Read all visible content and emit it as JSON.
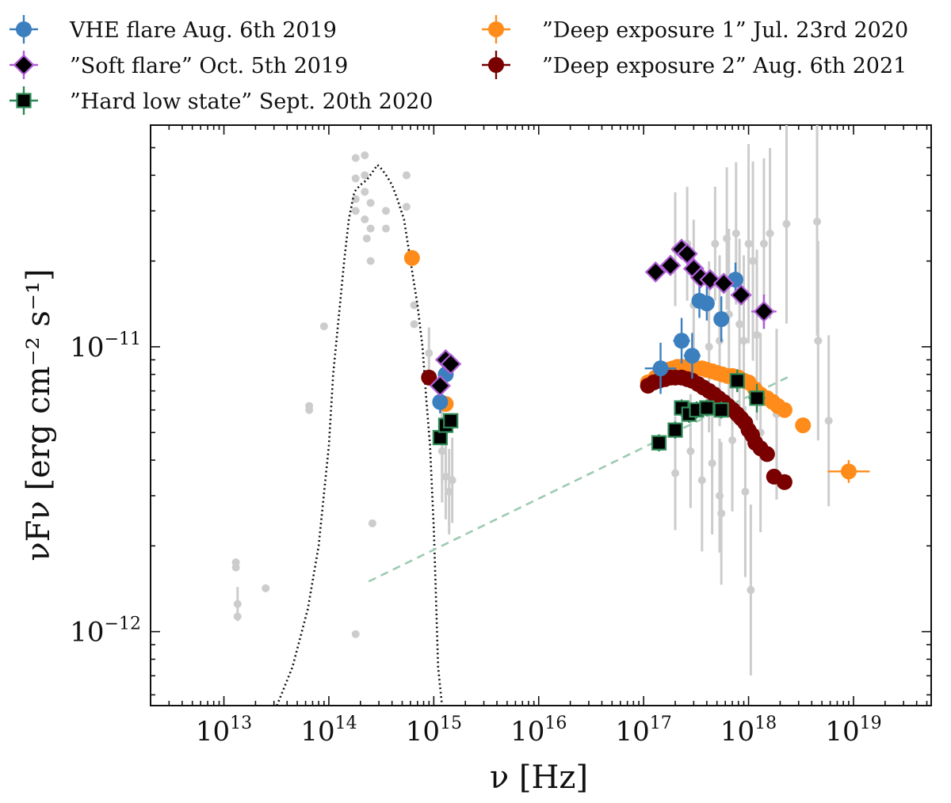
{
  "chart_data": {
    "type": "scatter",
    "xlabel": "ν [Hz]",
    "ylabel": "νFν [erg cm⁻² s⁻¹]",
    "xscale": "log",
    "yscale": "log",
    "xlim": [
      2000000000000.0,
      5.5e+19
    ],
    "ylim": [
      5.5e-13,
      6e-11
    ],
    "x_ticks": [
      {
        "value": 10000000000000.0,
        "base": "10",
        "exp": "13"
      },
      {
        "value": 100000000000000.0,
        "base": "10",
        "exp": "14"
      },
      {
        "value": 1000000000000000.0,
        "base": "10",
        "exp": "15"
      },
      {
        "value": 1e+16,
        "base": "10",
        "exp": "16"
      },
      {
        "value": 1e+17,
        "base": "10",
        "exp": "17"
      },
      {
        "value": 1e+18,
        "base": "10",
        "exp": "18"
      },
      {
        "value": 1e+19,
        "base": "10",
        "exp": "19"
      }
    ],
    "y_ticks": [
      {
        "value": 1e-11,
        "base": "10",
        "exp": "−11"
      },
      {
        "value": 1e-12,
        "base": "10",
        "exp": "−12"
      }
    ],
    "legend_position": "top, outside, two columns",
    "colors": {
      "vhe": "#3b7fbf",
      "soft_edge": "#b05ed8",
      "hard_edge": "#2e8b57",
      "deep1": "#ff8c1a",
      "deep2": "#7a0000",
      "archival": "#cccccc",
      "template": "#111111",
      "powerlaw": "#9ccbb0"
    },
    "legend": [
      {
        "label": "VHE flare Aug. 6th 2019",
        "marker": "circle",
        "color": "#3b7fbf"
      },
      {
        "label": "”Soft flare” Oct. 5th 2019",
        "marker": "diamond",
        "color": "#b05ed8"
      },
      {
        "label": "”Hard low state” Sept. 20th 2020",
        "marker": "square",
        "color": "#2e8b57"
      },
      {
        "label": "”Deep exposure 1” Jul. 23rd 2020",
        "marker": "circle",
        "color": "#ff8c1a"
      },
      {
        "label": "”Deep exposure 2” Aug. 6th 2021",
        "marker": "circle",
        "color": "#7a0000"
      }
    ],
    "series": [
      {
        "name": "VHE flare Aug. 6th 2019",
        "marker": "circle",
        "points": [
          [
            1150000000000000.0,
            6.4e-12
          ],
          [
            1300000000000000.0,
            8e-12
          ],
          [
            1.45e+17,
            8.4e-12
          ],
          [
            2.3e+17,
            1.05e-11
          ],
          [
            2.9e+17,
            9.3e-12
          ],
          [
            3.4e+17,
            1.45e-11
          ],
          [
            4e+17,
            1.42e-11
          ],
          [
            5.5e+17,
            1.25e-11
          ],
          [
            7.5e+17,
            1.72e-11
          ]
        ],
        "xerr": [
          0,
          0,
          0.15,
          0.08,
          0.08,
          0.07,
          0.07,
          0.07,
          0.07
        ],
        "yerr": [
          0.04,
          0.03,
          0.09,
          0.08,
          0.08,
          0.06,
          0.06,
          0.08,
          0.06
        ]
      },
      {
        "name": "”Soft flare” Oct. 5th 2019",
        "marker": "diamond",
        "points": [
          [
            1150000000000000.0,
            7.3e-12
          ],
          [
            1300000000000000.0,
            9e-12
          ],
          [
            1450000000000000.0,
            8.7e-12
          ],
          [
            1.3e+17,
            1.83e-11
          ],
          [
            1.8e+17,
            1.93e-11
          ],
          [
            2.3e+17,
            2.2e-11
          ],
          [
            2.6e+17,
            2.12e-11
          ],
          [
            3e+17,
            1.88e-11
          ],
          [
            3.5e+17,
            1.75e-11
          ],
          [
            4.3e+17,
            1.72e-11
          ],
          [
            5.8e+17,
            1.67e-11
          ],
          [
            8.5e+17,
            1.52e-11
          ],
          [
            1.4e+18,
            1.33e-11
          ]
        ],
        "xerr": [
          0,
          0,
          0,
          0.04,
          0.04,
          0.04,
          0.04,
          0.04,
          0.04,
          0.05,
          0.05,
          0.07,
          0.12
        ],
        "yerr": [
          0,
          0,
          0,
          0.02,
          0.02,
          0.02,
          0.02,
          0.02,
          0.02,
          0.02,
          0.02,
          0.03,
          0.06
        ]
      },
      {
        "name": "”Hard low state” Sept. 20th 2020",
        "marker": "square",
        "points": [
          [
            1150000000000000.0,
            4.8e-12
          ],
          [
            1300000000000000.0,
            5.3e-12
          ],
          [
            1450000000000000.0,
            5.5e-12
          ],
          [
            1.4e+17,
            4.6e-12
          ],
          [
            2e+17,
            5.1e-12
          ],
          [
            2.3e+17,
            6.1e-12
          ],
          [
            2.7e+17,
            5.8e-12
          ],
          [
            3.2e+17,
            6e-12
          ],
          [
            4e+17,
            6.1e-12
          ],
          [
            5.5e+17,
            6e-12
          ],
          [
            7.8e+17,
            7.6e-12
          ],
          [
            1.2e+18,
            6.6e-12
          ]
        ],
        "xerr": [
          0,
          0,
          0,
          0.06,
          0.05,
          0.04,
          0.04,
          0.05,
          0.05,
          0.06,
          0.06,
          0.08
        ],
        "yerr": [
          0,
          0,
          0,
          0.03,
          0.03,
          0.03,
          0.03,
          0.03,
          0.03,
          0.03,
          0.04,
          0.05
        ]
      },
      {
        "name": "”Deep exposure 1” Jul. 23rd 2020",
        "marker": "circle",
        "points": [
          [
            620000000000000.0,
            2.05e-11
          ],
          [
            1300000000000000.0,
            6.3e-12
          ],
          [
            1.1e+17,
            7.5e-12
          ],
          [
            1.3e+17,
            7.8e-12
          ],
          [
            1.5e+17,
            8.1e-12
          ],
          [
            1.7e+17,
            8.3e-12
          ],
          [
            1.9e+17,
            8.4e-12
          ],
          [
            2.1e+17,
            8.5e-12
          ],
          [
            2.3e+17,
            8.5e-12
          ],
          [
            2.6e+17,
            8.5e-12
          ],
          [
            2.9e+17,
            8.5e-12
          ],
          [
            3.2e+17,
            8.4e-12
          ],
          [
            3.6e+17,
            8.4e-12
          ],
          [
            4e+17,
            8.3e-12
          ],
          [
            4.5e+17,
            8.2e-12
          ],
          [
            5e+17,
            8.1e-12
          ],
          [
            5.6e+17,
            8e-12
          ],
          [
            6.3e+17,
            7.9e-12
          ],
          [
            7e+17,
            7.9e-12
          ],
          [
            8e+17,
            7.8e-12
          ],
          [
            9e+17,
            7.6e-12
          ],
          [
            1e+18,
            7.5e-12
          ],
          [
            1.15e+18,
            7.1e-12
          ],
          [
            1.3e+18,
            6.8e-12
          ],
          [
            1.5e+18,
            6.6e-12
          ],
          [
            1.7e+18,
            6.4e-12
          ],
          [
            1.9e+18,
            6.2e-12
          ],
          [
            2.2e+18,
            6e-12
          ],
          [
            3.3e+18,
            5.3e-12
          ],
          [
            9e+18,
            3.65e-12
          ]
        ],
        "xerr": [
          0,
          0,
          0,
          0,
          0,
          0,
          0,
          0,
          0,
          0,
          0,
          0,
          0,
          0,
          0,
          0,
          0,
          0,
          0,
          0,
          0,
          0,
          0,
          0,
          0,
          0,
          0,
          0,
          0,
          0.2
        ],
        "yerr": [
          0,
          0,
          0,
          0,
          0,
          0,
          0,
          0,
          0,
          0,
          0,
          0,
          0,
          0,
          0,
          0,
          0,
          0,
          0,
          0,
          0,
          0,
          0,
          0,
          0,
          0,
          0,
          0,
          0,
          0.04
        ]
      },
      {
        "name": "”Deep exposure 2” Aug. 6th 2021",
        "marker": "circle",
        "points": [
          [
            900000000000000.0,
            7.8e-12
          ],
          [
            1.1e+17,
            7.3e-12
          ],
          [
            1.25e+17,
            7.5e-12
          ],
          [
            1.4e+17,
            7.6e-12
          ],
          [
            1.6e+17,
            7.7e-12
          ],
          [
            1.8e+17,
            7.8e-12
          ],
          [
            2e+17,
            7.8e-12
          ],
          [
            2.3e+17,
            7.8e-12
          ],
          [
            2.6e+17,
            7.7e-12
          ],
          [
            2.9e+17,
            7.6e-12
          ],
          [
            3.3e+17,
            7.4e-12
          ],
          [
            3.7e+17,
            7.2e-12
          ],
          [
            4.2e+17,
            7e-12
          ],
          [
            4.7e+17,
            6.8e-12
          ],
          [
            5.2e+17,
            6.6e-12
          ],
          [
            5.8e+17,
            6.4e-12
          ],
          [
            6.4e+17,
            6.2e-12
          ],
          [
            7.1e+17,
            6e-12
          ],
          [
            7.8e+17,
            5.8e-12
          ],
          [
            8.5e+17,
            5.6e-12
          ],
          [
            9.3e+17,
            5.4e-12
          ],
          [
            1e+18,
            5.1e-12
          ],
          [
            1.08e+18,
            4.9e-12
          ],
          [
            1.16e+18,
            4.6e-12
          ],
          [
            1.3e+18,
            4.4e-12
          ],
          [
            1.5e+18,
            4.2e-12
          ],
          [
            1.75e+18,
            3.5e-12
          ],
          [
            2.2e+18,
            3.35e-12
          ]
        ]
      },
      {
        "name": "",
        "marker": "archival",
        "points": [
          [
            13000000000000.0,
            1.75e-12
          ],
          [
            13000000000000.0,
            1.68e-12
          ],
          [
            13500000000000.0,
            1.25e-12
          ],
          [
            13500000000000.0,
            1.13e-12
          ],
          [
            25000000000000.0,
            1.42e-12
          ],
          [
            65000000000000.0,
            6.2e-12
          ],
          [
            65000000000000.0,
            6e-12
          ],
          [
            90000000000000.0,
            1.18e-11
          ],
          [
            180000000000000.0,
            9.8e-13
          ],
          [
            180000000000000.0,
            4.6e-11
          ],
          [
            180000000000000.0,
            3.9e-11
          ],
          [
            180000000000000.0,
            3.3e-11
          ],
          [
            180000000000000.0,
            3e-11
          ],
          [
            220000000000000.0,
            4.7e-11
          ],
          [
            220000000000000.0,
            4e-11
          ],
          [
            220000000000000.0,
            3.5e-11
          ],
          [
            220000000000000.0,
            2.8e-11
          ],
          [
            230000000000000.0,
            2.4e-11
          ],
          [
            250000000000000.0,
            3.2e-11
          ],
          [
            250000000000000.0,
            2.6e-11
          ],
          [
            250000000000000.0,
            2e-11
          ],
          [
            260000000000000.0,
            2.4e-12
          ],
          [
            350000000000000.0,
            3e-11
          ],
          [
            350000000000000.0,
            2.6e-11
          ],
          [
            550000000000000.0,
            4e-11
          ],
          [
            550000000000000.0,
            3.1e-11
          ],
          [
            650000000000000.0,
            1.4e-11
          ],
          [
            650000000000000.0,
            1.2e-11
          ],
          [
            900000000000000.0,
            9.5e-12
          ],
          [
            1200000000000000.0,
            5e-12
          ],
          [
            1200000000000000.0,
            4.3e-12
          ],
          [
            1300000000000000.0,
            3.5e-12
          ],
          [
            1400000000000000.0,
            3.1e-12
          ],
          [
            1500000000000000.0,
            3.4e-12
          ],
          [
            2e+17,
            2.2e-11
          ],
          [
            2.6e+17,
            2.3e-11
          ],
          [
            3e+17,
            1.4e-11
          ],
          [
            4.2e+17,
            1e-11
          ],
          [
            4.8e+17,
            2.3e-11
          ],
          [
            5.3e+17,
            1.05e-11
          ],
          [
            5.5e+17,
            2.6e-12
          ],
          [
            6.2e+17,
            2.4e-11
          ],
          [
            6.5e+17,
            1.3e-11
          ],
          [
            7.6e+17,
            2.5e-11
          ],
          [
            8.2e+17,
            1.2e-11
          ],
          [
            9e+17,
            1.05e-11
          ],
          [
            1e+18,
            2.3e-11
          ],
          [
            1.1e+18,
            2e-11
          ],
          [
            1.2e+18,
            1.1e-11
          ],
          [
            1.4e+18,
            2.3e-11
          ],
          [
            1.6e+18,
            2.5e-11
          ],
          [
            2.3e+18,
            2.7e-11
          ],
          [
            4.5e+18,
            2.75e-11
          ],
          [
            4.6e+18,
            1.05e-11
          ],
          [
            5.8e+18,
            5.5e-12
          ],
          [
            2e+17,
            3.6e-12
          ],
          [
            2.8e+17,
            4.3e-12
          ],
          [
            3.6e+17,
            3.4e-12
          ],
          [
            4.5e+17,
            3.9e-12
          ],
          [
            5.3e+17,
            3e-12
          ],
          [
            7e+17,
            4.7e-12
          ],
          [
            9.3e+17,
            3.1e-12
          ],
          [
            1.05e+18,
            1.4e-12
          ],
          [
            1.3e+18,
            5e-12
          ],
          [
            1.85e+18,
            5.8e-12
          ]
        ],
        "yerr": [
          0,
          0,
          0.06,
          0,
          0,
          0,
          0,
          0,
          0,
          0,
          0,
          0,
          0,
          0,
          0,
          0,
          0,
          0,
          0,
          0,
          0,
          0,
          0,
          0,
          0,
          0,
          0,
          0,
          0.09,
          0.18,
          0.18,
          0.15,
          0.15,
          0.15,
          0.2,
          0.2,
          0.3,
          0.3,
          0.2,
          0.3,
          0.25,
          0.25,
          0.3,
          0.25,
          0.3,
          0.3,
          0.35,
          0.35,
          0.3,
          0.3,
          0.3,
          0.35,
          0.4,
          0.35,
          0.3,
          0.2,
          0.2,
          0.25,
          0.25,
          0.2,
          0.25,
          0.3,
          0.3,
          0.35,
          0.3
        ]
      },
      {
        "name": "",
        "marker": "template-dotted",
        "points": [
          [
            32000000000000.0,
            5.5e-13
          ],
          [
            45000000000000.0,
            7.5e-13
          ],
          [
            63000000000000.0,
            1.2e-12
          ],
          [
            80000000000000.0,
            2e-12
          ],
          [
            100000000000000.0,
            4.5e-12
          ],
          [
            110000000000000.0,
            8e-12
          ],
          [
            125000000000000.0,
            1.3e-11
          ],
          [
            140000000000000.0,
            2e-11
          ],
          [
            155000000000000.0,
            2.8e-11
          ],
          [
            175000000000000.0,
            3.5e-11
          ],
          [
            200000000000000.0,
            3.7e-11
          ],
          [
            230000000000000.0,
            3.85e-11
          ],
          [
            260000000000000.0,
            4.1e-11
          ],
          [
            290000000000000.0,
            4.35e-11
          ],
          [
            320000000000000.0,
            4.2e-11
          ],
          [
            360000000000000.0,
            3.95e-11
          ],
          [
            400000000000000.0,
            3.7e-11
          ],
          [
            450000000000000.0,
            3.3e-11
          ],
          [
            520000000000000.0,
            2.8e-11
          ],
          [
            600000000000000.0,
            2e-11
          ],
          [
            700000000000000.0,
            1.4e-11
          ],
          [
            780000000000000.0,
            1e-11
          ],
          [
            850000000000000.0,
            6.5e-12
          ],
          [
            920000000000000.0,
            4.5e-12
          ],
          [
            1000000000000000.0,
            2.3e-12
          ],
          [
            1050000000000000.0,
            1.3e-12
          ],
          [
            1100000000000000.0,
            7.5e-13
          ],
          [
            1200000000000000.0,
            5.5e-13
          ]
        ]
      },
      {
        "name": "",
        "marker": "powerlaw-dashed",
        "points": [
          [
            240000000000000.0,
            1.5e-12
          ],
          [
            2.5e+18,
            7.9e-12
          ]
        ]
      }
    ]
  }
}
